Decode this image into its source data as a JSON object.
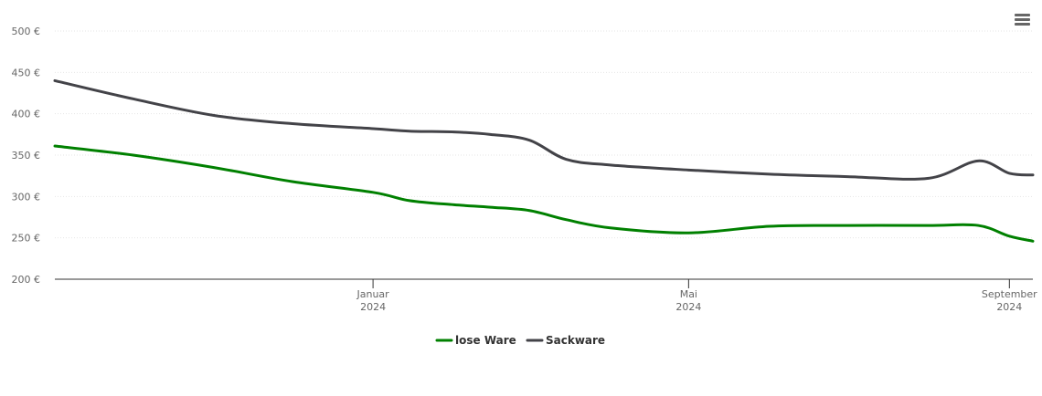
{
  "chart_data": {
    "type": "line",
    "title": "",
    "xlabel": "",
    "ylabel": "",
    "x": [
      "2023-09-01",
      "2023-10-01",
      "2023-11-01",
      "2023-12-01",
      "2024-01-01",
      "2024-01-15",
      "2024-02-01",
      "2024-02-15",
      "2024-03-01",
      "2024-03-15",
      "2024-04-01",
      "2024-05-01",
      "2024-06-01",
      "2024-07-01",
      "2024-08-01",
      "2024-08-20",
      "2024-09-01",
      "2024-09-10"
    ],
    "series": [
      {
        "name": "lose Ware",
        "color": "#008000",
        "values": [
          361,
          350,
          335,
          318,
          305,
          295,
          290,
          287,
          283,
          272,
          262,
          256,
          264,
          265,
          265,
          265,
          252,
          246
        ]
      },
      {
        "name": "Sackware",
        "color": "#434348",
        "values": [
          440,
          418,
          398,
          388,
          382,
          379,
          378,
          375,
          368,
          345,
          338,
          332,
          327,
          324,
          322,
          343,
          328,
          326
        ]
      }
    ],
    "ylim": [
      200,
      500
    ],
    "y_ticks": [
      "200 €",
      "250 €",
      "300 €",
      "350 €",
      "400 €",
      "450 €",
      "500 €"
    ],
    "x_ticks": [
      {
        "x": "2024-01-01",
        "line1": "Januar",
        "line2": "2024"
      },
      {
        "x": "2024-05-01",
        "line1": "Mai",
        "line2": "2024"
      },
      {
        "x": "2024-09-01",
        "line1": "September",
        "line2": "2024"
      }
    ],
    "grid": true,
    "legend": "bottom-center"
  },
  "menu_icon": "hamburger-menu-icon"
}
